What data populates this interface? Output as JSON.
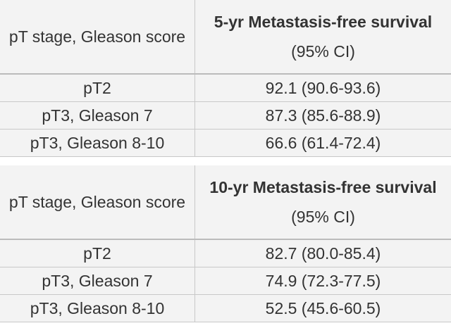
{
  "tables": [
    {
      "header": {
        "stage": "pT stage, Gleason score",
        "measure": "5-yr Metastasis-free survival",
        "note": "(95% CI)"
      },
      "rows": [
        [
          "pT2",
          "92.1 (90.6-93.6)"
        ],
        [
          "pT3, Gleason 7",
          "87.3 (85.6-88.9)"
        ],
        [
          "pT3, Gleason 8-10",
          "66.6 (61.4-72.4)"
        ]
      ]
    },
    {
      "header": {
        "stage": "pT stage, Gleason score",
        "measure": "10-yr Metastasis-free survival",
        "note": "(95% CI)"
      },
      "rows": [
        [
          "pT2",
          "82.7 (80.0-85.4)"
        ],
        [
          "pT3, Gleason 7",
          "74.9 (72.3-77.5)"
        ],
        [
          "pT3, Gleason 8-10",
          "52.5 (45.6-60.5)"
        ]
      ]
    }
  ]
}
